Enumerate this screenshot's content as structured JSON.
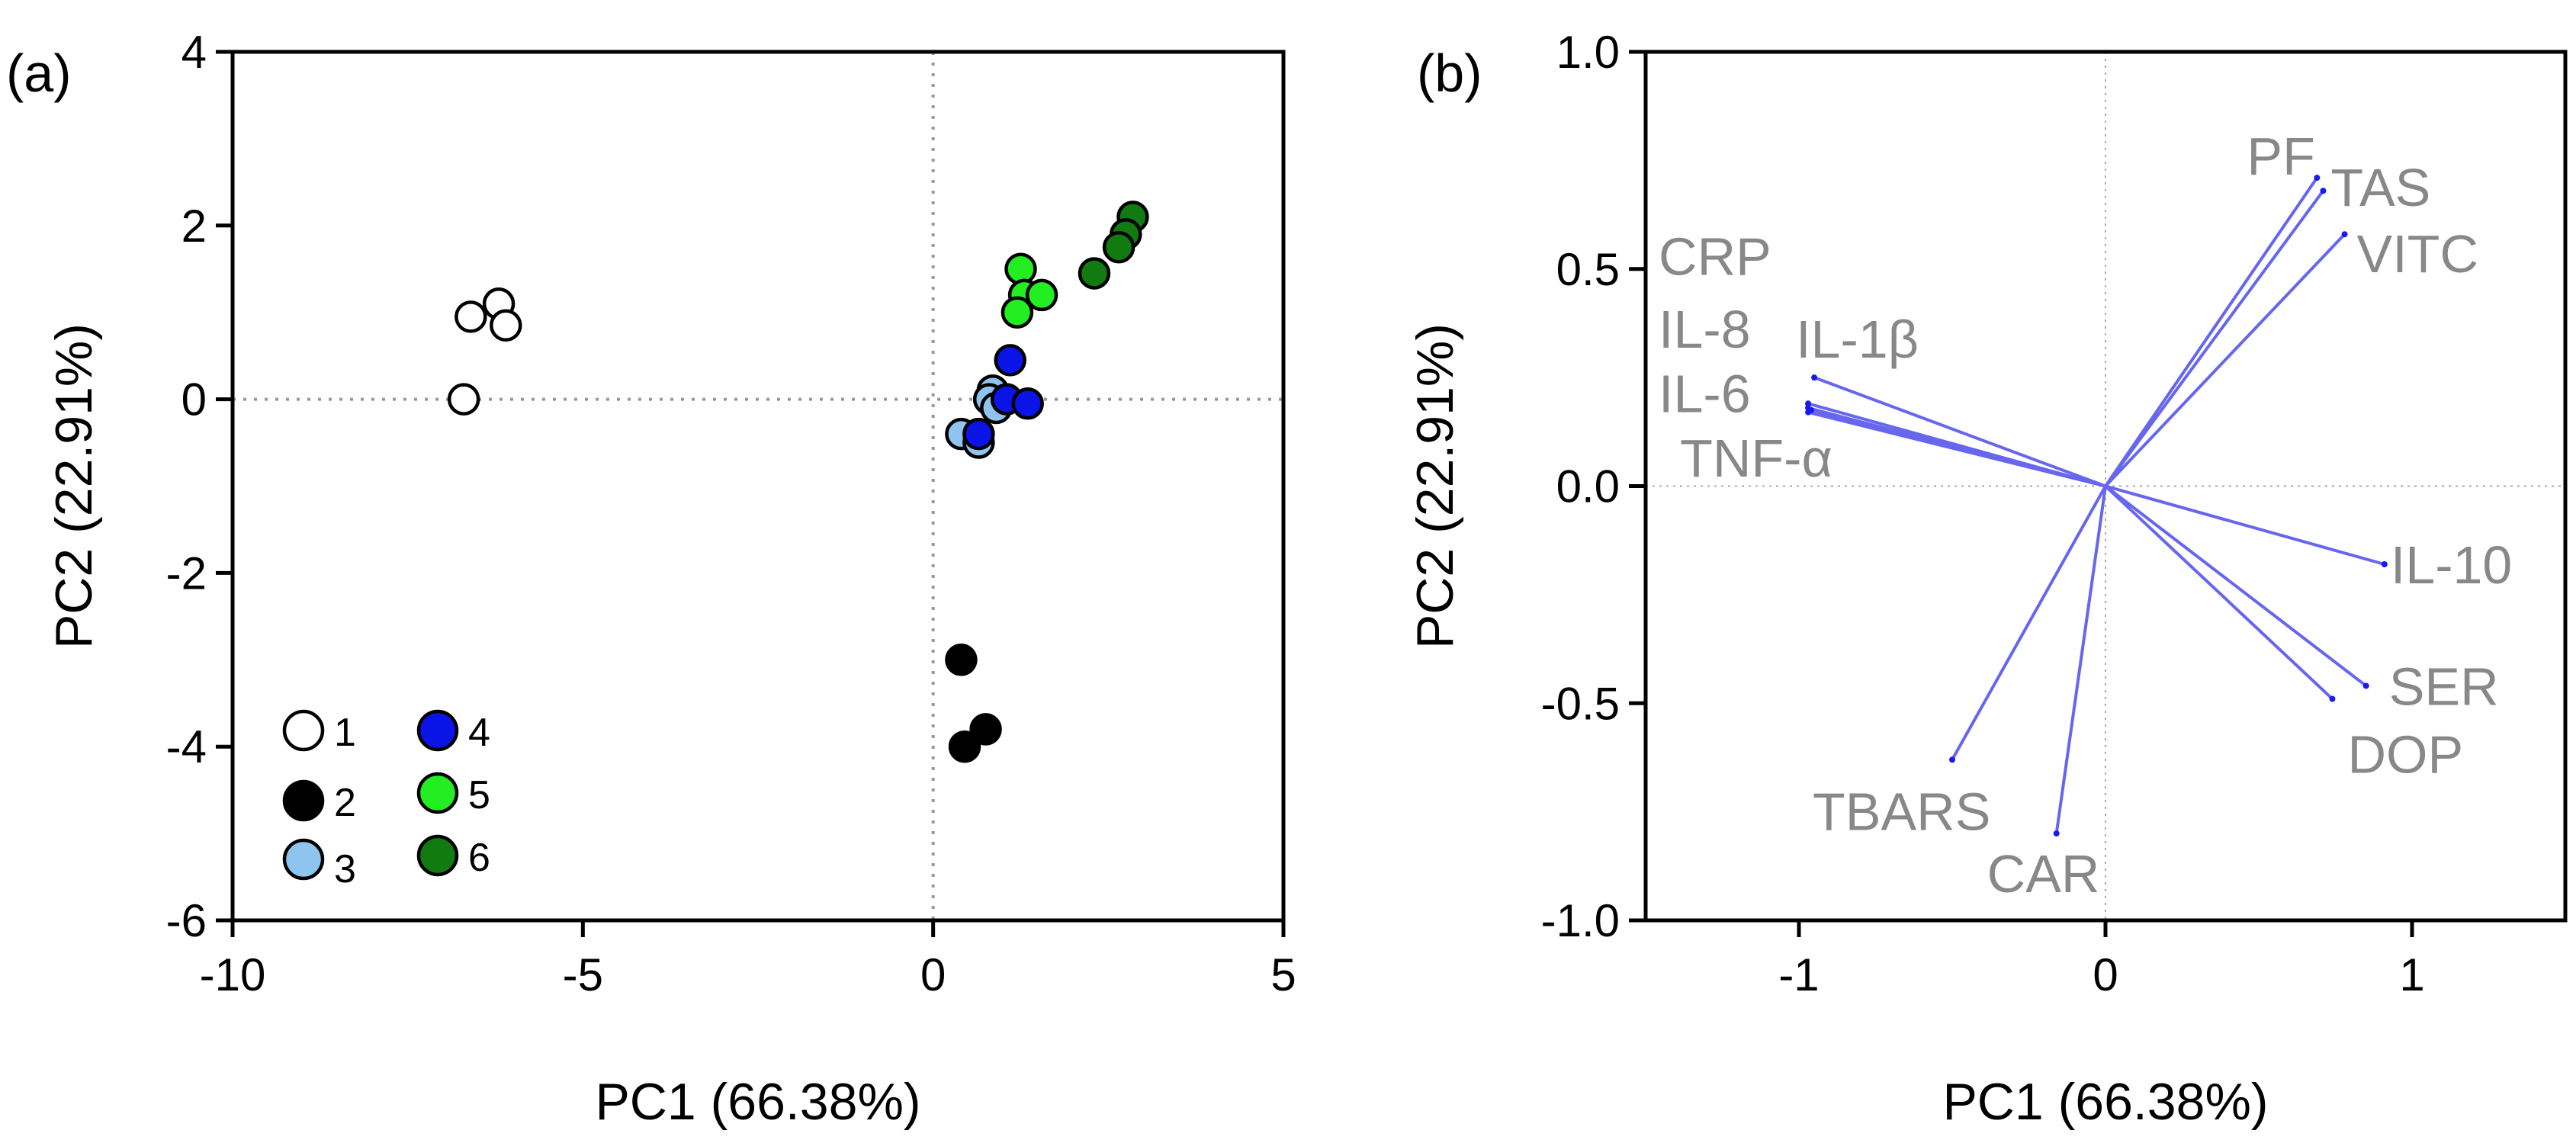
{
  "chart_data": [
    {
      "panel_label": "(a)",
      "type": "scatter",
      "xlabel": "PC1 (66.38%)",
      "ylabel": "PC2 (22.91%)",
      "xlim": [
        -10,
        5
      ],
      "ylim": [
        -6,
        4
      ],
      "x_ticks": [
        -10,
        -5,
        0,
        5
      ],
      "x_tick_labels": [
        "-10",
        "-5",
        "0",
        "5"
      ],
      "y_ticks": [
        -6,
        -4,
        -2,
        0,
        2,
        4
      ],
      "y_tick_labels": [
        "-6",
        "-4",
        "-2",
        "0",
        "2",
        "4"
      ],
      "reference_lines": "dotted at x=0 and y=0",
      "legend_position": "bottom-left",
      "series": [
        {
          "name": "1",
          "color": "#ffffff",
          "points": [
            [
              -6.6,
              0.95
            ],
            [
              -6.2,
              1.1
            ],
            [
              -6.1,
              0.85
            ],
            [
              -6.7,
              0.0
            ]
          ]
        },
        {
          "name": "2",
          "color": "#000000",
          "points": [
            [
              0.4,
              -3.0
            ],
            [
              0.75,
              -3.8
            ],
            [
              0.45,
              -4.0
            ]
          ]
        },
        {
          "name": "3",
          "color": "#8ec4ee",
          "points": [
            [
              0.4,
              -0.4
            ],
            [
              0.65,
              -0.5
            ],
            [
              0.85,
              0.1
            ],
            [
              0.8,
              0.0
            ],
            [
              0.9,
              -0.1
            ]
          ]
        },
        {
          "name": "4",
          "color": "#0a14e6",
          "points": [
            [
              1.1,
              0.45
            ],
            [
              1.05,
              0.0
            ],
            [
              1.35,
              -0.05
            ],
            [
              0.65,
              -0.4
            ]
          ]
        },
        {
          "name": "5",
          "color": "#22ee22",
          "points": [
            [
              1.25,
              1.5
            ],
            [
              1.3,
              1.2
            ],
            [
              1.55,
              1.2
            ],
            [
              1.2,
              1.0
            ]
          ]
        },
        {
          "name": "6",
          "color": "#117a11",
          "points": [
            [
              2.85,
              2.1
            ],
            [
              2.75,
              1.9
            ],
            [
              2.65,
              1.75
            ],
            [
              2.3,
              1.45
            ]
          ]
        }
      ]
    },
    {
      "panel_label": "(b)",
      "type": "biplot-loadings",
      "xlabel": "PC1 (66.38%)",
      "ylabel": "PC2 (22.91%)",
      "xlim": [
        -1.5,
        1.5
      ],
      "ylim": [
        -1.0,
        1.0
      ],
      "x_ticks": [
        -1,
        0,
        1
      ],
      "x_tick_labels": [
        "-1",
        "0",
        "1"
      ],
      "y_ticks": [
        -1.0,
        -0.5,
        0.0,
        0.5,
        1.0
      ],
      "y_tick_labels": [
        "-1.0",
        "-0.5",
        "0.0",
        "0.5",
        "1.0"
      ],
      "reference_lines": "dotted at x=0 and y=0",
      "line_color": "#6666ee",
      "label_color": "#888888",
      "loadings": [
        {
          "name": "CRP",
          "x": -0.97,
          "y": 0.19
        },
        {
          "name": "IL-8",
          "x": -0.97,
          "y": 0.18
        },
        {
          "name": "IL-6",
          "x": -0.97,
          "y": 0.17
        },
        {
          "name": "IL-1β",
          "x": -0.95,
          "y": 0.25
        },
        {
          "name": "TNF-α",
          "x": -0.96,
          "y": 0.175
        },
        {
          "name": "PF",
          "x": 0.69,
          "y": 0.71
        },
        {
          "name": "TAS",
          "x": 0.71,
          "y": 0.68
        },
        {
          "name": "VITC",
          "x": 0.78,
          "y": 0.58
        },
        {
          "name": "IL-10",
          "x": 0.91,
          "y": -0.18
        },
        {
          "name": "SER",
          "x": 0.85,
          "y": -0.46
        },
        {
          "name": "DOP",
          "x": 0.74,
          "y": -0.49
        },
        {
          "name": "TBARS",
          "x": -0.5,
          "y": -0.63
        },
        {
          "name": "CAR",
          "x": -0.16,
          "y": -0.8
        }
      ]
    }
  ]
}
